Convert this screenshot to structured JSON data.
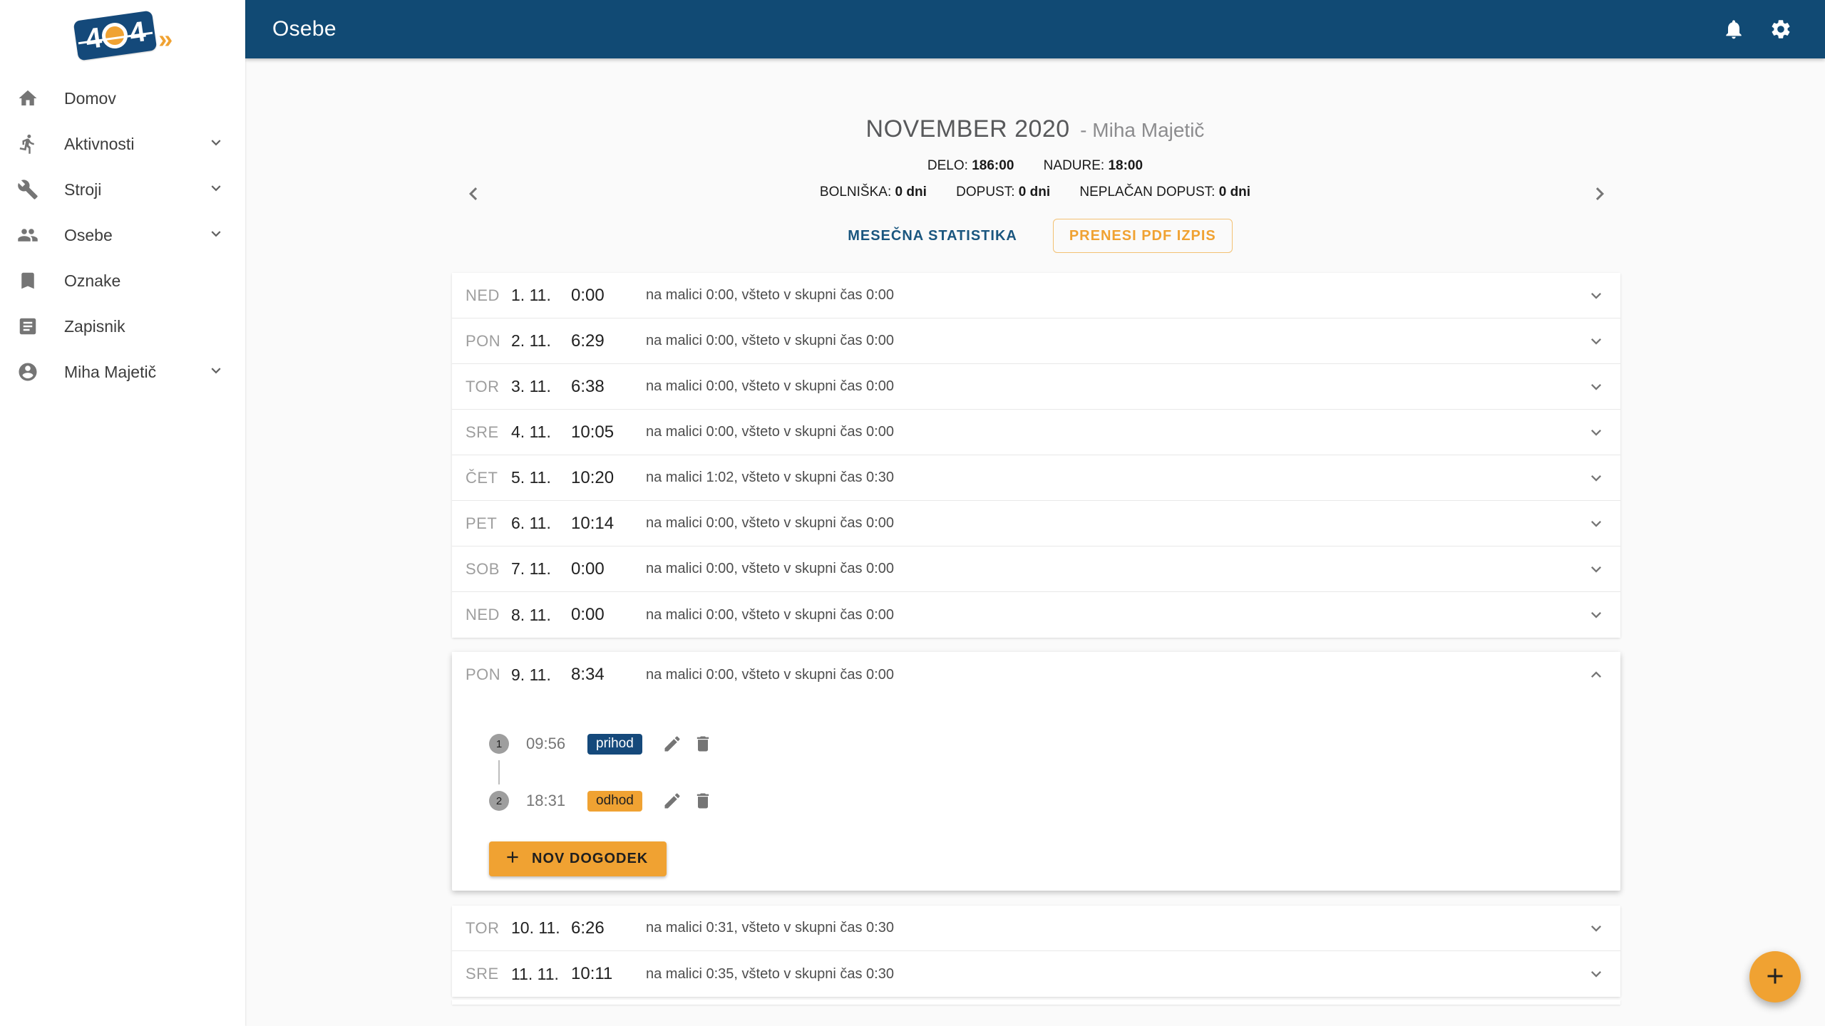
{
  "app": {
    "logo_text": "404",
    "header_title": "Osebe"
  },
  "sidebar": {
    "items": [
      {
        "label": "Domov",
        "icon": "home-icon",
        "expandable": false
      },
      {
        "label": "Aktivnosti",
        "icon": "activities-icon",
        "expandable": true
      },
      {
        "label": "Stroji",
        "icon": "wrench-icon",
        "expandable": true
      },
      {
        "label": "Osebe",
        "icon": "people-icon",
        "expandable": true
      },
      {
        "label": "Oznake",
        "icon": "bookmark-icon",
        "expandable": false
      },
      {
        "label": "Zapisnik",
        "icon": "log-icon",
        "expandable": false
      },
      {
        "label": "Miha Majetič",
        "icon": "account-icon",
        "expandable": true
      }
    ]
  },
  "month_header": {
    "title": "NOVEMBER 2020",
    "subtitle": "- Miha Majetič",
    "stats_row1": [
      {
        "label": "DELO:",
        "value": "186:00"
      },
      {
        "label": "NADURE:",
        "value": "18:00"
      }
    ],
    "stats_row2": [
      {
        "label": "BOLNIŠKA:",
        "value": "0 dni"
      },
      {
        "label": "DOPUST:",
        "value": "0 dni"
      },
      {
        "label": "NEPLAČAN DOPUST:",
        "value": "0 dni"
      }
    ],
    "monthly_stats_button": "MESEČNA STATISTIKA",
    "pdf_button": "PRENESI PDF IZPIS"
  },
  "days": [
    {
      "dow": "NED",
      "date": "1. 11.",
      "total": "0:00",
      "summary": "na malici 0:00, všteto v skupni čas 0:00",
      "expanded": false
    },
    {
      "dow": "PON",
      "date": "2. 11.",
      "total": "6:29",
      "summary": "na malici 0:00, všteto v skupni čas 0:00",
      "expanded": false
    },
    {
      "dow": "TOR",
      "date": "3. 11.",
      "total": "6:38",
      "summary": "na malici 0:00, všteto v skupni čas 0:00",
      "expanded": false
    },
    {
      "dow": "SRE",
      "date": "4. 11.",
      "total": "10:05",
      "summary": "na malici 0:00, všteto v skupni čas 0:00",
      "expanded": false
    },
    {
      "dow": "ČET",
      "date": "5. 11.",
      "total": "10:20",
      "summary": "na malici 1:02, všteto v skupni čas 0:30",
      "expanded": false
    },
    {
      "dow": "PET",
      "date": "6. 11.",
      "total": "10:14",
      "summary": "na malici 0:00, všteto v skupni čas 0:00",
      "expanded": false
    },
    {
      "dow": "SOB",
      "date": "7. 11.",
      "total": "0:00",
      "summary": "na malici 0:00, všteto v skupni čas 0:00",
      "expanded": false
    },
    {
      "dow": "NED",
      "date": "8. 11.",
      "total": "0:00",
      "summary": "na malici 0:00, všteto v skupni čas 0:00",
      "expanded": false
    },
    {
      "dow": "PON",
      "date": "9. 11.",
      "total": "8:34",
      "summary": "na malici 0:00, všteto v skupni čas 0:00",
      "expanded": true,
      "events": [
        {
          "num": "1",
          "time": "09:56",
          "type": "prihod"
        },
        {
          "num": "2",
          "time": "18:31",
          "type": "odhod"
        }
      ],
      "add_event_label": "NOV DOGODEK"
    },
    {
      "dow": "TOR",
      "date": "10. 11.",
      "total": "6:26",
      "summary": "na malici 0:31, všteto v skupni čas 0:30",
      "expanded": false
    },
    {
      "dow": "SRE",
      "date": "11. 11.",
      "total": "10:11",
      "summary": "na malici 0:35, všteto v skupni čas 0:30",
      "expanded": false
    }
  ],
  "colors": {
    "navy": "#114A74",
    "navy_badge": "#15497B",
    "orange": "#F0A232",
    "background": "#FAFAFA",
    "surface": "#FFFFFF"
  }
}
